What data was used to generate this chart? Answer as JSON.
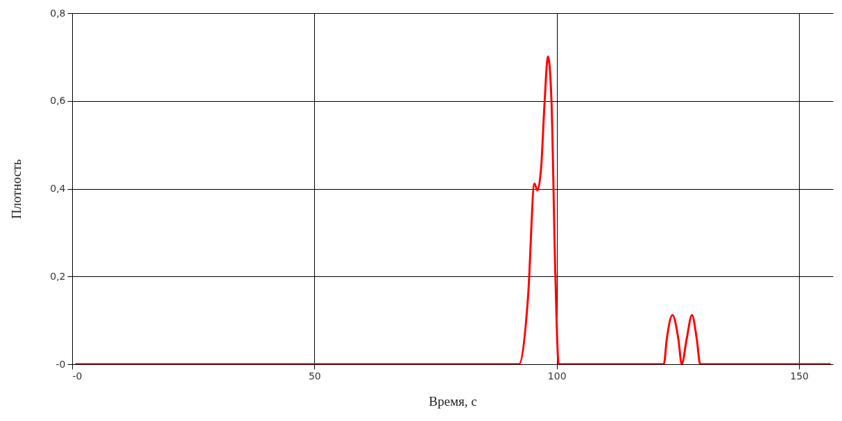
{
  "chart_data": {
    "type": "line",
    "xlabel": "Время, с",
    "ylabel": "Плотность",
    "xlim": [
      0,
      157
    ],
    "ylim": [
      0,
      0.8
    ],
    "xticks": [
      {
        "value": 0,
        "label": "-0"
      },
      50,
      100,
      150
    ],
    "yticks": [
      {
        "value": 0,
        "label": "-0"
      },
      {
        "value": 0.2,
        "label": "0,2"
      },
      {
        "value": 0.4,
        "label": "0,4"
      },
      {
        "value": 0.6,
        "label": "0,6"
      },
      {
        "value": 0.8,
        "label": "0,8"
      }
    ],
    "grid": true,
    "series": [
      {
        "color": "#ff0000",
        "x": [
          0.8,
          92.2,
          94.1,
          95.4,
          96.0,
          96.8,
          97.4,
          98.2,
          98.9,
          99.7,
          100.4,
          122.1,
          122.7,
          123.9,
          125.1,
          125.8,
          126.8,
          127.9,
          128.9,
          129.6,
          156.4
        ],
        "values": [
          0,
          0,
          0.157,
          0.412,
          0.396,
          0.451,
          0.578,
          0.701,
          0.604,
          0.21,
          0,
          0,
          0.057,
          0.112,
          0.057,
          0,
          0.057,
          0.112,
          0.057,
          0,
          0
        ]
      }
    ]
  }
}
